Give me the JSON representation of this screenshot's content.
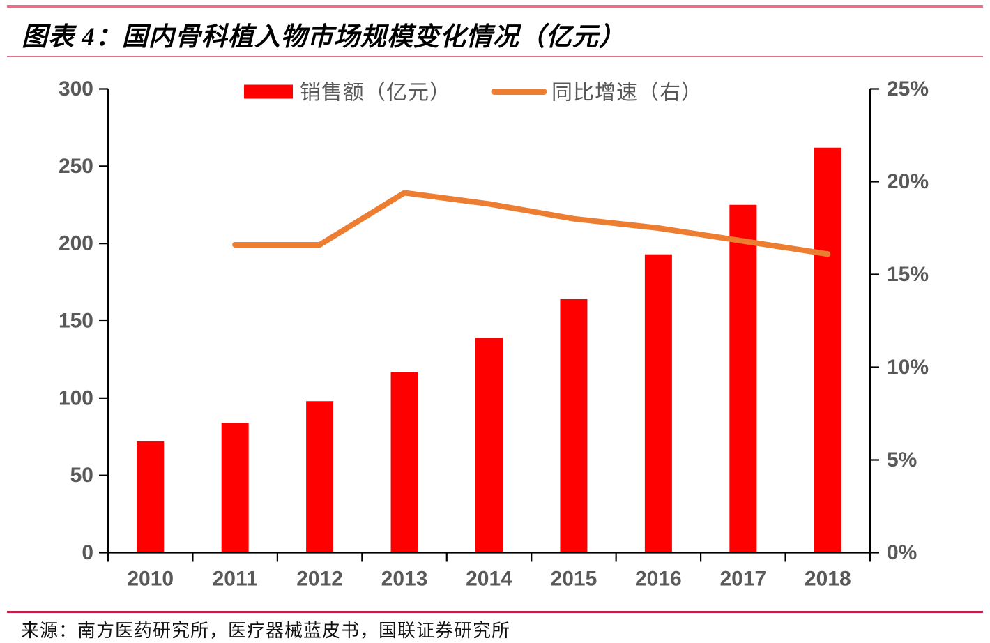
{
  "title": "图表 4：国内骨科植入物市场规模变化情况（亿元）",
  "source": "来源：南方医药研究所，医疗器械蓝皮书，国联证券研究所",
  "colors": {
    "bar": "#FF0000",
    "line": "#ED7D31",
    "axis": "#000000",
    "tick_label": "#595959",
    "rule_pink": "#DF7289",
    "rule_crimson": "#C41E4A"
  },
  "chart_data": {
    "type": "combo-bar-line",
    "title": "图表 4：国内骨科植入物市场规模变化情况（亿元）",
    "categories": [
      "2010",
      "2011",
      "2012",
      "2013",
      "2014",
      "2015",
      "2016",
      "2017",
      "2018"
    ],
    "series": [
      {
        "name": "销售额（亿元）",
        "type": "bar",
        "axis": "left",
        "color_key": "bar",
        "values": [
          72,
          84,
          98,
          117,
          139,
          164,
          193,
          225,
          262
        ]
      },
      {
        "name": "同比增速（右）",
        "type": "line",
        "axis": "right",
        "color_key": "line",
        "values": [
          null,
          16.6,
          16.6,
          19.4,
          18.8,
          18.0,
          17.5,
          16.8,
          16.1
        ]
      }
    ],
    "left_axis": {
      "min": 0,
      "max": 300,
      "step": 50,
      "tick_labels": [
        "0",
        "50",
        "100",
        "150",
        "200",
        "250",
        "300"
      ]
    },
    "right_axis": {
      "min": 0,
      "max": 25,
      "step": 5,
      "tick_labels": [
        "0%",
        "5%",
        "10%",
        "15%",
        "20%",
        "25%"
      ]
    },
    "legend_position": "top-center",
    "grid": false
  }
}
